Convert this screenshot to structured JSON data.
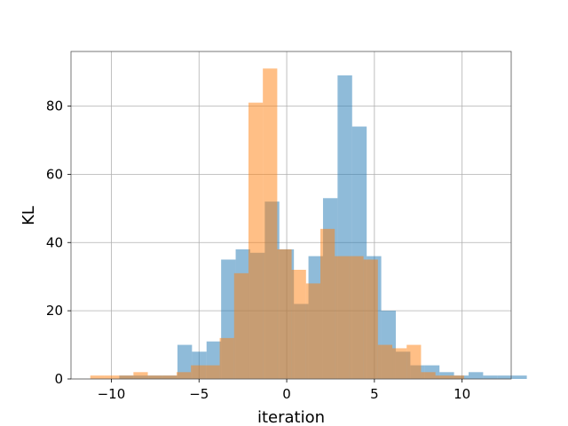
{
  "chart_data": {
    "type": "bar",
    "title": "",
    "xlabel": "iteration",
    "ylabel": "KL",
    "xlim": [
      -12.3,
      12.8
    ],
    "ylim": [
      0,
      96
    ],
    "grid": true,
    "legend": "none",
    "x_ticks": [
      -10,
      -5,
      0,
      5,
      10
    ],
    "x_tick_labels": [
      "−10",
      "−5",
      "0",
      "5",
      "10"
    ],
    "y_ticks": [
      0,
      20,
      40,
      60,
      80
    ],
    "y_tick_labels": [
      "0",
      "20",
      "40",
      "60",
      "80"
    ],
    "series": [
      {
        "color": "#1f77b4",
        "opacity": 0.5,
        "bin_start": -9.55,
        "bin_width": 0.83,
        "counts": [
          1,
          1,
          1,
          1,
          10,
          8,
          11,
          35,
          38,
          37,
          52,
          38,
          22,
          36,
          53,
          89,
          74,
          36,
          20,
          8,
          4,
          4,
          2,
          1,
          2,
          1,
          1,
          1
        ]
      },
      {
        "color": "#ff7f0e",
        "opacity": 0.5,
        "bin_start": -11.2,
        "bin_width": 0.82,
        "counts": [
          1,
          1,
          1,
          2,
          1,
          1,
          2,
          4,
          4,
          12,
          31,
          81,
          91,
          38,
          32,
          28,
          44,
          36,
          36,
          35,
          10,
          9,
          10,
          2,
          1,
          1
        ]
      }
    ]
  }
}
